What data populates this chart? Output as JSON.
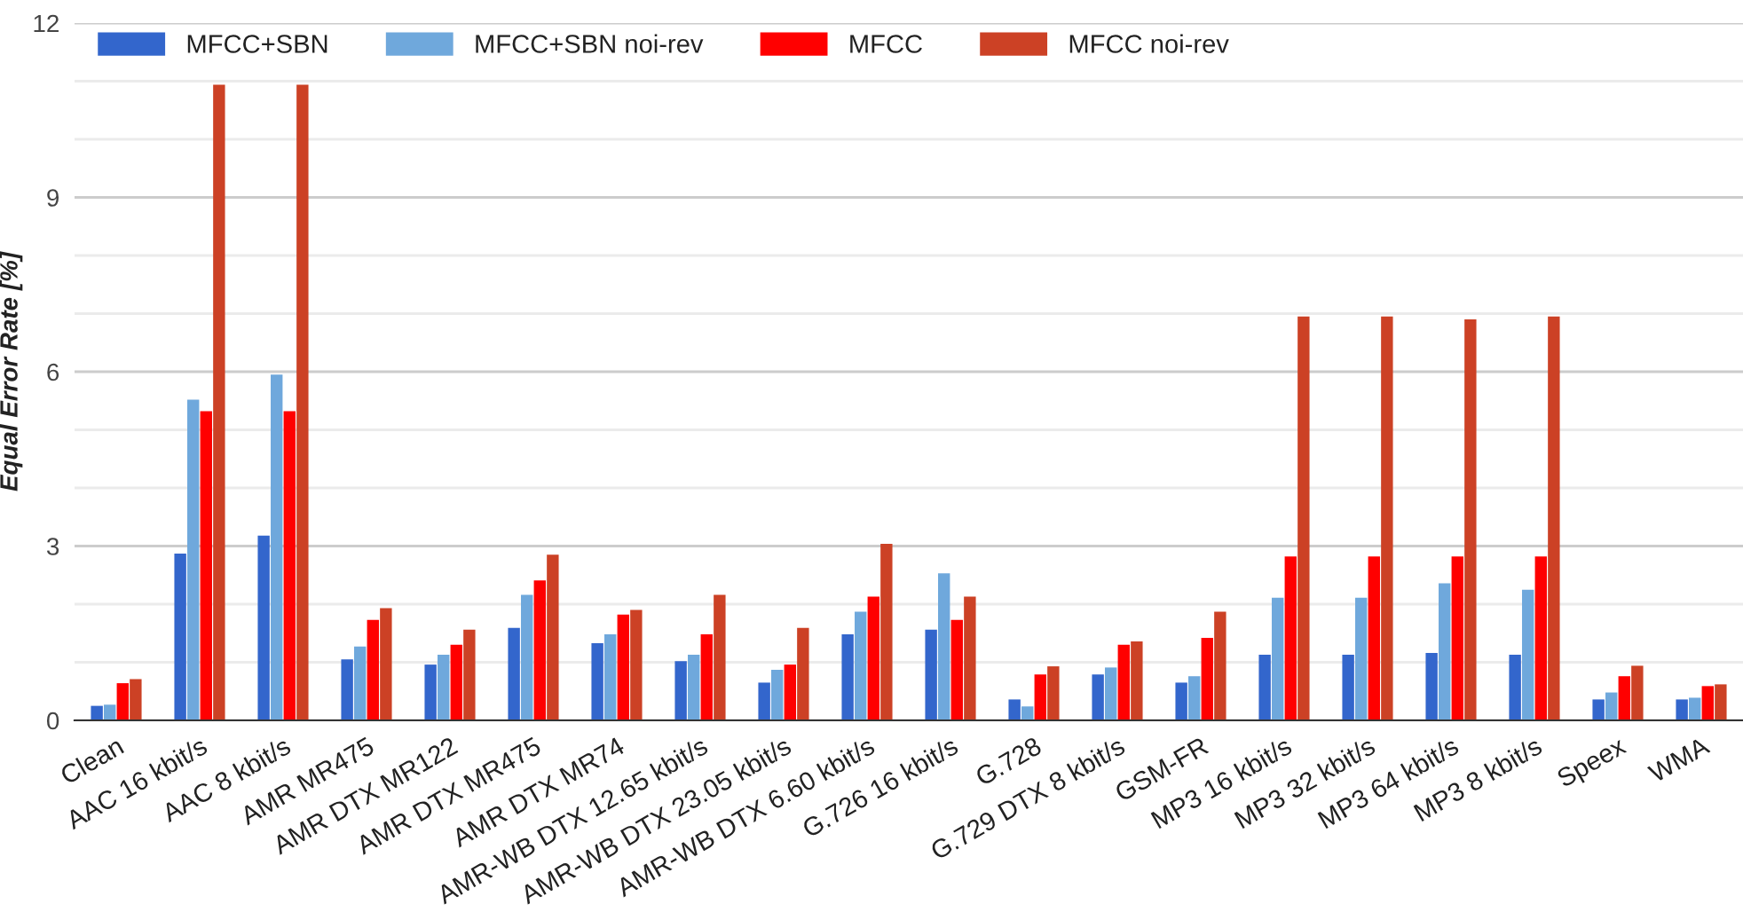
{
  "chart_data": {
    "type": "bar",
    "ylabel": "Equal Error Rate [%]",
    "categories": [
      "Clean",
      "AAC 16 kbit/s",
      "AAC 8 kbit/s",
      "AMR MR475",
      "AMR DTX MR122",
      "AMR DTX MR475",
      "AMR DTX MR74",
      "AMR-WB DTX 12.65 kbit/s",
      "AMR-WB DTX 23.05 kbit/s",
      "AMR-WB DTX 6.60 kbit/s",
      "G.726 16 kbit/s",
      "G.728",
      "G.729 DTX 8 kbit/s",
      "GSM-FR",
      "MP3 16 kbit/s",
      "MP3 32 kbit/s",
      "MP3 64 kbit/s",
      "MP3 8 kbit/s",
      "Speex",
      "WMA"
    ],
    "series": [
      {
        "name": "MFCC+SBN",
        "color": "#3366cc",
        "values": [
          0.25,
          2.87,
          3.18,
          1.05,
          0.96,
          1.59,
          1.33,
          1.02,
          0.65,
          1.48,
          1.56,
          0.36,
          0.79,
          0.65,
          1.13,
          1.13,
          1.16,
          1.13,
          0.36,
          0.36
        ]
      },
      {
        "name": "MFCC+SBN noi-rev",
        "color": "#6fa8dc",
        "values": [
          0.27,
          5.52,
          5.95,
          1.27,
          1.13,
          2.16,
          1.48,
          1.13,
          0.87,
          1.87,
          2.53,
          0.24,
          0.91,
          0.76,
          2.11,
          2.11,
          2.36,
          2.25,
          0.48,
          0.39
        ]
      },
      {
        "name": "MFCC",
        "color": "#ff0000",
        "values": [
          0.64,
          5.32,
          5.32,
          1.73,
          1.3,
          2.41,
          1.82,
          1.48,
          0.96,
          2.13,
          1.73,
          0.79,
          1.3,
          1.42,
          2.82,
          2.82,
          2.82,
          2.82,
          0.76,
          0.59
        ]
      },
      {
        "name": "MFCC noi-rev",
        "color": "#cc4125",
        "values": [
          0.71,
          10.94,
          10.94,
          1.93,
          1.56,
          2.85,
          1.9,
          2.16,
          1.59,
          3.04,
          2.13,
          0.93,
          1.36,
          1.87,
          6.95,
          6.95,
          6.9,
          6.95,
          0.94,
          0.62
        ]
      }
    ],
    "ylim": [
      0,
      12
    ],
    "yticks": [
      0,
      {
        "value": 1,
        "label": null
      },
      {
        "value": 2,
        "label": null
      },
      3,
      {
        "value": 4,
        "label": null
      },
      {
        "value": 5,
        "label": null
      },
      6,
      {
        "value": 7,
        "label": null
      },
      {
        "value": 8,
        "label": null
      },
      9,
      {
        "value": 10,
        "label": null
      },
      {
        "value": 11,
        "label": null
      },
      12
    ],
    "grid": "y",
    "legend": "top left"
  }
}
